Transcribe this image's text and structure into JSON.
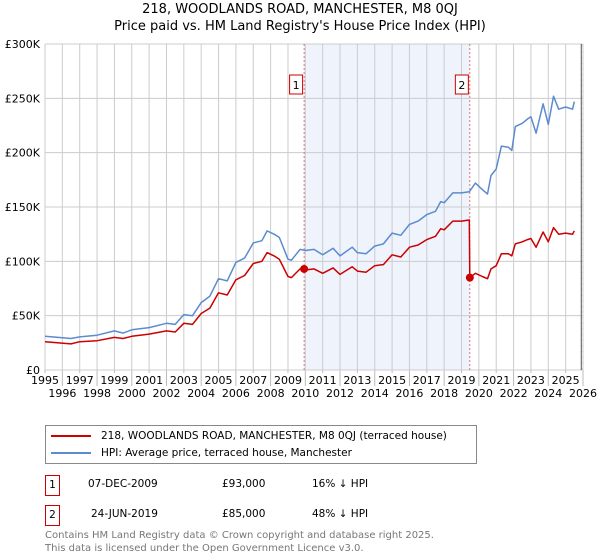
{
  "header": {
    "title_line1": "218, WOODLANDS ROAD, MANCHESTER, M8 0QJ",
    "title_line2": "Price paid vs. HM Land Registry's House Price Index (HPI)"
  },
  "chart_data": {
    "type": "line",
    "title": "218, WOODLANDS ROAD, MANCHESTER, M8 0QJ — Price paid vs. HM Land Registry's House Price Index (HPI)",
    "xlabel": "",
    "ylabel": "",
    "xlim": [
      1995,
      2026
    ],
    "ylim": [
      0,
      300000
    ],
    "x_ticks": [
      "1995",
      "1996",
      "1997",
      "1998",
      "1999",
      "2000",
      "2001",
      "2002",
      "2003",
      "2004",
      "2005",
      "2006",
      "2007",
      "2008",
      "2009",
      "2010",
      "2011",
      "2012",
      "2013",
      "2014",
      "2015",
      "2016",
      "2017",
      "2018",
      "2019",
      "2020",
      "2021",
      "2022",
      "2023",
      "2024",
      "2025",
      "2026"
    ],
    "y_ticks": [
      {
        "value": 0,
        "label": "£0"
      },
      {
        "value": 50000,
        "label": "£50K"
      },
      {
        "value": 100000,
        "label": "£100K"
      },
      {
        "value": 150000,
        "label": "£150K"
      },
      {
        "value": 200000,
        "label": "£200K"
      },
      {
        "value": 250000,
        "label": "£250K"
      },
      {
        "value": 300000,
        "label": "£300K"
      }
    ],
    "grid": true,
    "colors": {
      "property": "#cc0000",
      "hpi": "#5b8bd0",
      "shade": "#eef3fc"
    },
    "shaded_range": [
      2009.93,
      2019.48
    ],
    "forecast_hatch_from": 2025.9,
    "series": [
      {
        "name": "218, WOODLANDS ROAD, MANCHESTER, M8 0QJ (terracedhouse)",
        "key": "property",
        "x": [
          1995,
          1996.5,
          1997,
          1998,
          1999,
          1999.5,
          2000,
          2001,
          2002,
          2002.5,
          2003,
          2003.5,
          2004,
          2004.5,
          2005,
          2005.5,
          2006,
          2006.5,
          2007,
          2007.5,
          2007.8,
          2008.2,
          2008.5,
          2009,
          2009.2,
          2009.7,
          2010,
          2010.5,
          2011,
          2011.6,
          2012,
          2012.7,
          2013,
          2013.5,
          2014,
          2014.5,
          2015,
          2015.5,
          2016,
          2016.5,
          2017,
          2017.5,
          2017.8,
          2018,
          2018.5,
          2019,
          2019.45,
          2019.48,
          2019.8,
          2020.2,
          2020.5,
          2020.7,
          2021,
          2021.3,
          2021.7,
          2021.9,
          2022.1,
          2022.5,
          2022.8,
          2023,
          2023.3,
          2023.7,
          2024,
          2024.3,
          2024.6,
          2025,
          2025.4,
          2025.5
        ],
        "y": [
          26,
          24,
          26,
          27,
          30,
          29,
          31,
          33,
          36,
          35,
          43,
          42,
          52,
          57,
          71,
          69,
          83,
          87,
          98,
          100,
          108,
          105,
          102,
          86,
          85,
          93,
          92,
          93,
          89,
          94,
          88,
          95,
          91,
          90,
          96,
          97,
          106,
          104,
          113,
          115,
          120,
          123,
          130,
          129,
          137,
          137,
          138,
          85,
          89,
          86,
          84,
          93,
          96,
          107,
          107,
          105,
          116,
          118,
          120,
          121,
          113,
          127,
          118,
          131,
          125,
          126,
          125,
          128
        ]
      },
      {
        "name": "HPI: Average price, terraced house, Manchester",
        "key": "hpi",
        "x": [
          1995,
          1996.5,
          1997,
          1998,
          1999,
          1999.5,
          2000,
          2001,
          2002,
          2002.5,
          2003,
          2003.5,
          2004,
          2004.5,
          2005,
          2005.5,
          2006,
          2006.5,
          2007,
          2007.5,
          2007.8,
          2008.2,
          2008.5,
          2009,
          2009.2,
          2009.7,
          2010,
          2010.5,
          2011,
          2011.6,
          2012,
          2012.7,
          2013,
          2013.5,
          2014,
          2014.5,
          2015,
          2015.5,
          2016,
          2016.5,
          2017,
          2017.5,
          2017.8,
          2018,
          2018.5,
          2019,
          2019.45,
          2019.8,
          2020.2,
          2020.5,
          2020.7,
          2021,
          2021.3,
          2021.7,
          2021.9,
          2022.1,
          2022.5,
          2022.8,
          2023,
          2023.3,
          2023.7,
          2024,
          2024.3,
          2024.6,
          2025,
          2025.4,
          2025.5
        ],
        "y": [
          31,
          29,
          30.5,
          32,
          36,
          34,
          37,
          39,
          43,
          42,
          51,
          50,
          62,
          68,
          84,
          82,
          99,
          103,
          117,
          119,
          128,
          125,
          122,
          102,
          101,
          111,
          110,
          111,
          106,
          112,
          105,
          113,
          108,
          107,
          114,
          116,
          126,
          124,
          134,
          137,
          143,
          146,
          155,
          154,
          163,
          163,
          164,
          172,
          166,
          162,
          179,
          185,
          206,
          205,
          202,
          224,
          227,
          231,
          233,
          218,
          245,
          226,
          252,
          240,
          242,
          240,
          247
        ]
      }
    ],
    "y_units": "thousand GBP",
    "sales": [
      {
        "label": "1",
        "date": "07-DEC-2009",
        "x": 2009.93,
        "price": "£93,000",
        "value": 93,
        "hpi_diff": "16% ↓ HPI"
      },
      {
        "label": "2",
        "date": "24-JUN-2019",
        "x": 2019.48,
        "price": "£85,000",
        "value": 85,
        "hpi_diff": "48% ↓ HPI"
      }
    ]
  },
  "legend": {
    "property": "218, WOODLANDS ROAD, MANCHESTER, M8 0QJ (terraced house)",
    "hpi": "HPI: Average price, terraced house, Manchester"
  },
  "footer": {
    "line1": "Contains HM Land Registry data © Crown copyright and database right 2025.",
    "line2": "This data is licensed under the Open Government Licence v3.0."
  }
}
